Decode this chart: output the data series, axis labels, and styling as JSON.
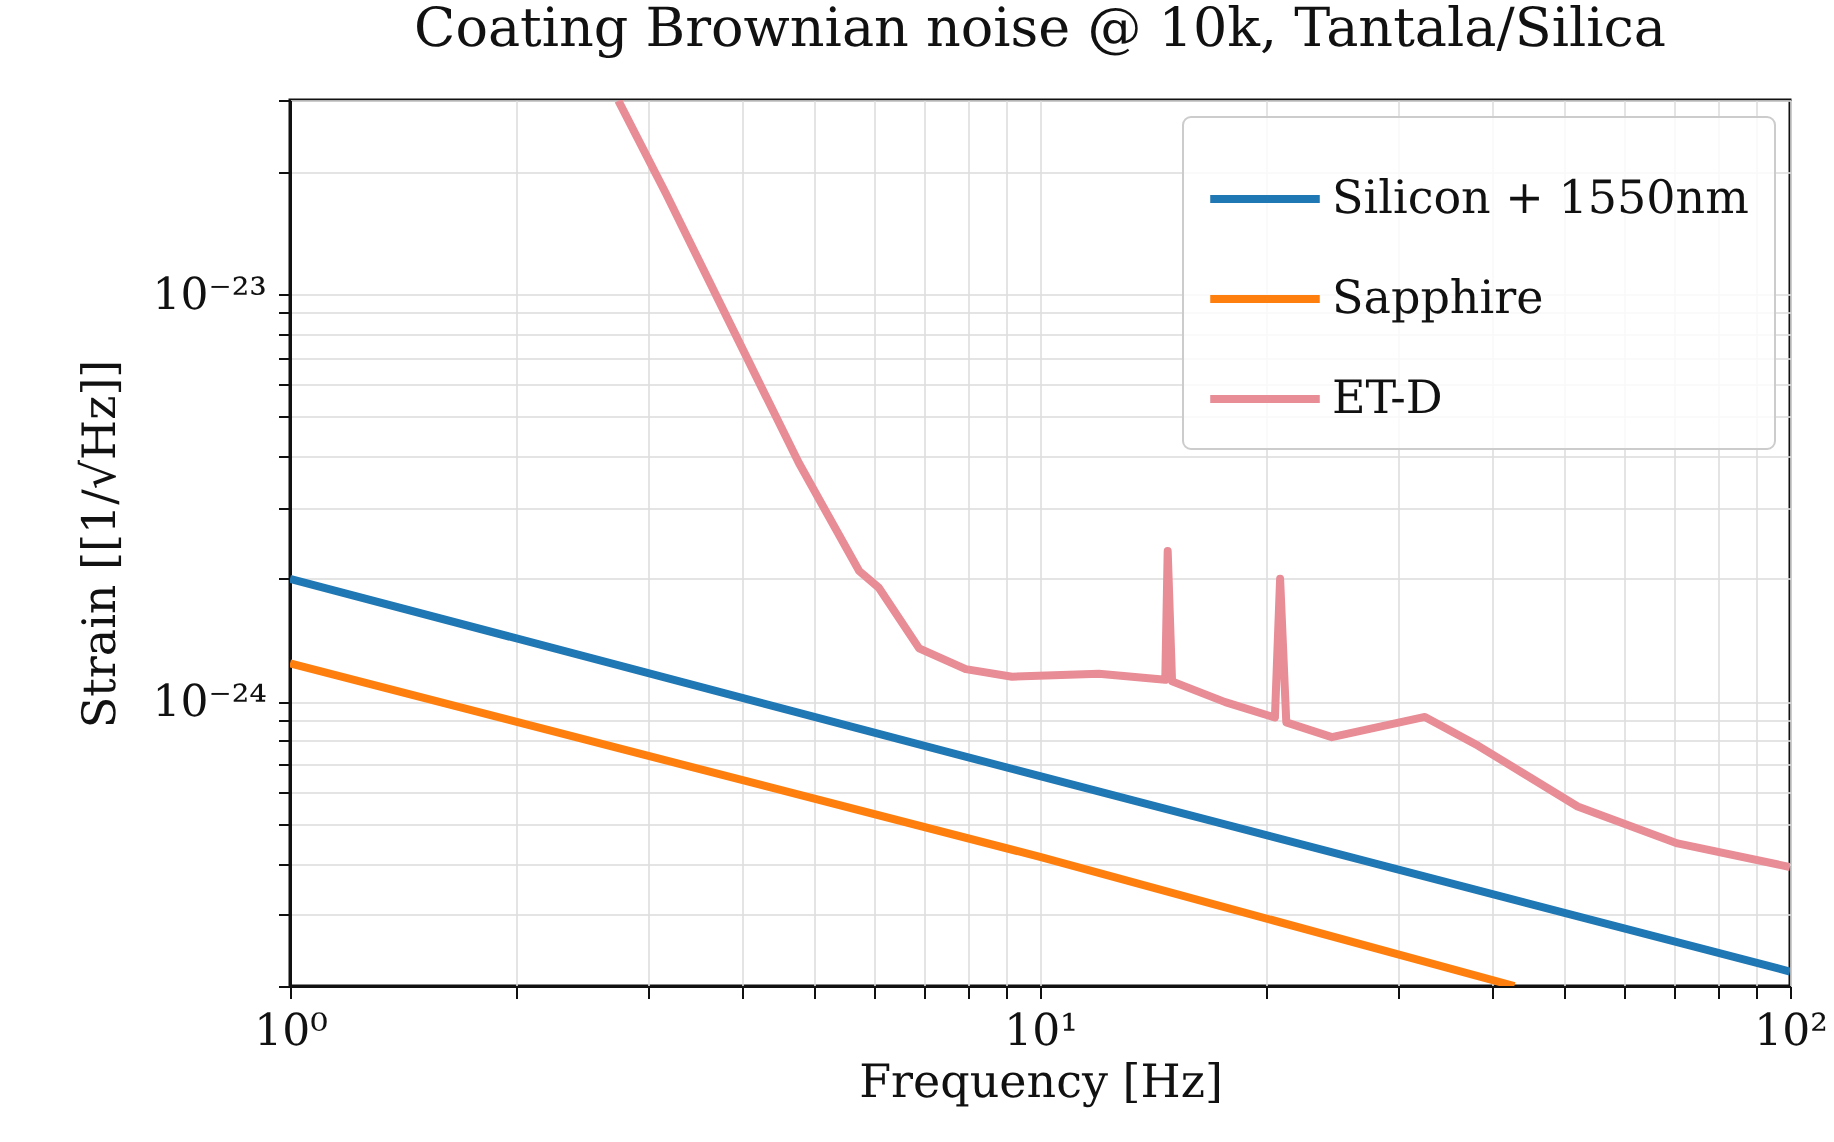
{
  "chart_data": {
    "type": "line",
    "title": "Coating Brownian noise @ 10k, Tantala/Silica",
    "xlabel": "Frequency [Hz]",
    "ylabel": "Strain [[1/√Hz]]",
    "log": "xy",
    "grid": true,
    "legend": "top right",
    "xlim": [
      1,
      100
    ],
    "ylim": [
      2e-25,
      3e-23
    ],
    "xticks": [
      {
        "value": 1,
        "label": "10⁰"
      },
      {
        "value": 2,
        "label": null
      },
      {
        "value": 3,
        "label": null
      },
      {
        "value": 4,
        "label": null
      },
      {
        "value": 5,
        "label": null
      },
      {
        "value": 6,
        "label": null
      },
      {
        "value": 7,
        "label": null
      },
      {
        "value": 8,
        "label": null
      },
      {
        "value": 9,
        "label": null
      },
      {
        "value": 10,
        "label": "10¹"
      },
      {
        "value": 20,
        "label": null
      },
      {
        "value": 30,
        "label": null
      },
      {
        "value": 40,
        "label": null
      },
      {
        "value": 50,
        "label": null
      },
      {
        "value": 60,
        "label": null
      },
      {
        "value": 70,
        "label": null
      },
      {
        "value": 80,
        "label": null
      },
      {
        "value": 90,
        "label": null
      },
      {
        "value": 100,
        "label": "10²"
      }
    ],
    "yticks": [
      {
        "value": 2e-25,
        "label": null
      },
      {
        "value": 3e-25,
        "label": null
      },
      {
        "value": 4e-25,
        "label": null
      },
      {
        "value": 5e-25,
        "label": null
      },
      {
        "value": 6e-25,
        "label": null
      },
      {
        "value": 7e-25,
        "label": null
      },
      {
        "value": 8e-25,
        "label": null
      },
      {
        "value": 9e-25,
        "label": null
      },
      {
        "value": 1e-24,
        "label": "10⁻²⁴"
      },
      {
        "value": 2e-24,
        "label": null
      },
      {
        "value": 3e-24,
        "label": null
      },
      {
        "value": 4e-24,
        "label": null
      },
      {
        "value": 5e-24,
        "label": null
      },
      {
        "value": 6e-24,
        "label": null
      },
      {
        "value": 7e-24,
        "label": null
      },
      {
        "value": 8e-24,
        "label": null
      },
      {
        "value": 9e-24,
        "label": null
      },
      {
        "value": 1e-23,
        "label": "10⁻²³"
      },
      {
        "value": 2e-23,
        "label": null
      },
      {
        "value": 3e-23,
        "label": null
      }
    ],
    "series": [
      {
        "name": "Silicon + 1550nm",
        "color": "#1f77b4",
        "x": [
          1,
          10,
          100
        ],
        "values": [
          2e-24,
          6.55e-25,
          2.17e-25
        ]
      },
      {
        "name": "Sapphire",
        "color": "#ff7f0e",
        "x": [
          1,
          10,
          42.9
        ],
        "values": [
          1.24e-24,
          4.15e-25,
          2e-25
        ]
      },
      {
        "name": "ET-D",
        "color": "#e88c96",
        "x": [
          2.74,
          3.17,
          3.97,
          4.77,
          5.74,
          6.1,
          6.9,
          7.96,
          9.18,
          11.98,
          14.69,
          14.8,
          15.0,
          17.66,
          20.57,
          20.9,
          21.3,
          24.5,
          32.6,
          38.4,
          52.1,
          70.8,
          100
        ],
        "values": [
          2.99e-23,
          1.77e-23,
          7.64e-24,
          3.85e-24,
          2.09e-24,
          1.9e-24,
          1.35e-24,
          1.2e-24,
          1.15e-24,
          1.17e-24,
          1.13e-24,
          2.34e-24,
          1.12e-24,
          9.96e-25,
          9.13e-25,
          2e-24,
          8.88e-25,
          8.17e-25,
          9.16e-25,
          7.78e-25,
          5.52e-25,
          4.48e-25,
          3.92e-25
        ]
      }
    ]
  }
}
